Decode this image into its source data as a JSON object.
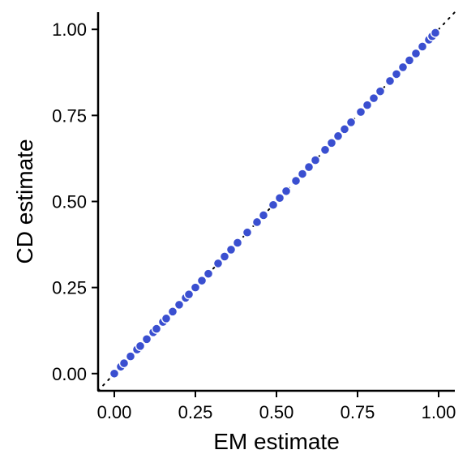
{
  "chart_data": {
    "type": "scatter",
    "title": "",
    "xlabel": "EM estimate",
    "ylabel": "CD estimate",
    "xlim": [
      -0.05,
      1.05
    ],
    "ylim": [
      -0.05,
      1.05
    ],
    "x_ticks": [
      0.0,
      0.25,
      0.5,
      0.75,
      1.0
    ],
    "y_ticks": [
      0.0,
      0.25,
      0.5,
      0.75,
      1.0
    ],
    "x_tick_labels": [
      "0.00",
      "0.25",
      "0.50",
      "0.75",
      "1.00"
    ],
    "y_tick_labels": [
      "0.00",
      "0.25",
      "0.50",
      "0.75",
      "1.00"
    ],
    "grid": false,
    "reference_line": {
      "slope": 1,
      "intercept": 0,
      "style": "dotted",
      "color": "#000000"
    },
    "point_color": "#3a4fd0",
    "point_outline": "#ffffff",
    "points": [
      {
        "x": 0.0,
        "y": 0.0
      },
      {
        "x": 0.02,
        "y": 0.02
      },
      {
        "x": 0.03,
        "y": 0.03
      },
      {
        "x": 0.05,
        "y": 0.05
      },
      {
        "x": 0.07,
        "y": 0.07
      },
      {
        "x": 0.08,
        "y": 0.08
      },
      {
        "x": 0.1,
        "y": 0.1
      },
      {
        "x": 0.12,
        "y": 0.12
      },
      {
        "x": 0.13,
        "y": 0.13
      },
      {
        "x": 0.15,
        "y": 0.15
      },
      {
        "x": 0.16,
        "y": 0.16
      },
      {
        "x": 0.18,
        "y": 0.18
      },
      {
        "x": 0.2,
        "y": 0.2
      },
      {
        "x": 0.22,
        "y": 0.22
      },
      {
        "x": 0.23,
        "y": 0.23
      },
      {
        "x": 0.25,
        "y": 0.25
      },
      {
        "x": 0.27,
        "y": 0.27
      },
      {
        "x": 0.29,
        "y": 0.29
      },
      {
        "x": 0.32,
        "y": 0.32
      },
      {
        "x": 0.34,
        "y": 0.34
      },
      {
        "x": 0.36,
        "y": 0.36
      },
      {
        "x": 0.38,
        "y": 0.38
      },
      {
        "x": 0.41,
        "y": 0.41
      },
      {
        "x": 0.44,
        "y": 0.44
      },
      {
        "x": 0.46,
        "y": 0.46
      },
      {
        "x": 0.49,
        "y": 0.49
      },
      {
        "x": 0.51,
        "y": 0.51
      },
      {
        "x": 0.53,
        "y": 0.53
      },
      {
        "x": 0.56,
        "y": 0.56
      },
      {
        "x": 0.58,
        "y": 0.58
      },
      {
        "x": 0.6,
        "y": 0.6
      },
      {
        "x": 0.62,
        "y": 0.62
      },
      {
        "x": 0.65,
        "y": 0.65
      },
      {
        "x": 0.67,
        "y": 0.67
      },
      {
        "x": 0.69,
        "y": 0.69
      },
      {
        "x": 0.71,
        "y": 0.71
      },
      {
        "x": 0.73,
        "y": 0.73
      },
      {
        "x": 0.76,
        "y": 0.76
      },
      {
        "x": 0.78,
        "y": 0.78
      },
      {
        "x": 0.8,
        "y": 0.8
      },
      {
        "x": 0.82,
        "y": 0.82
      },
      {
        "x": 0.85,
        "y": 0.85
      },
      {
        "x": 0.87,
        "y": 0.87
      },
      {
        "x": 0.89,
        "y": 0.89
      },
      {
        "x": 0.91,
        "y": 0.91
      },
      {
        "x": 0.93,
        "y": 0.93
      },
      {
        "x": 0.95,
        "y": 0.95
      },
      {
        "x": 0.97,
        "y": 0.97
      },
      {
        "x": 0.98,
        "y": 0.98
      },
      {
        "x": 0.99,
        "y": 0.99
      }
    ]
  }
}
